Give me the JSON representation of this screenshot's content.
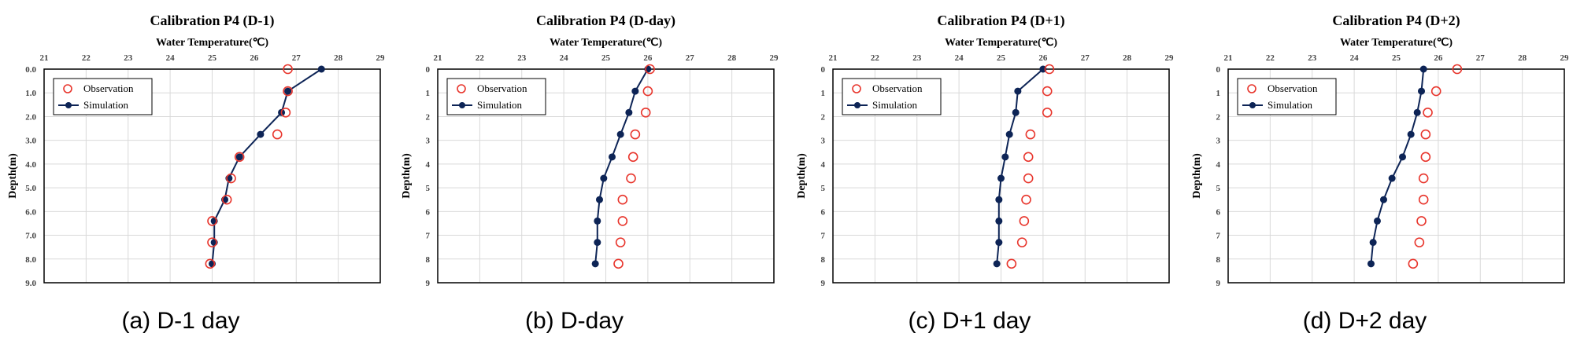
{
  "chart_data": [
    {
      "type": "scatter",
      "title": "Calibration P4 (D-1)",
      "xlabel": "Water Temperature(℃)",
      "ylabel": "Depth(m)",
      "caption": "(a) D-1 day",
      "xlim": [
        21,
        29
      ],
      "ylim": [
        0,
        9
      ],
      "x_ticks": [
        "21",
        "22",
        "23",
        "24",
        "25",
        "26",
        "27",
        "28",
        "29"
      ],
      "y_ticks": [
        "0.0",
        "1.0",
        "2.0",
        "3.0",
        "4.0",
        "5.0",
        "6.0",
        "7.0",
        "8.0",
        "9.0"
      ],
      "y_inverted": true,
      "grid": true,
      "legend_position": "top-left",
      "series": [
        {
          "name": "Observation",
          "marker": "open-circle",
          "color": "#e8352c",
          "points": [
            [
              26.8,
              0.0
            ],
            [
              26.8,
              0.93
            ],
            [
              26.75,
              1.83
            ],
            [
              26.55,
              2.75
            ],
            [
              25.65,
              3.7
            ],
            [
              25.45,
              4.6
            ],
            [
              25.35,
              5.5
            ],
            [
              25.0,
              6.4
            ],
            [
              25.0,
              7.3
            ],
            [
              24.95,
              8.2
            ]
          ]
        },
        {
          "name": "Simulation",
          "marker": "line-dot",
          "color": "#0d2456",
          "points": [
            [
              27.6,
              0.0
            ],
            [
              26.8,
              0.93
            ],
            [
              26.65,
              1.83
            ],
            [
              26.15,
              2.75
            ],
            [
              25.65,
              3.7
            ],
            [
              25.4,
              4.6
            ],
            [
              25.3,
              5.5
            ],
            [
              25.05,
              6.4
            ],
            [
              25.05,
              7.3
            ],
            [
              25.0,
              8.2
            ]
          ]
        }
      ]
    },
    {
      "type": "scatter",
      "title": "Calibration P4 (D-day)",
      "xlabel": "Water Temperature(℃)",
      "ylabel": "Depth(m)",
      "caption": "(b) D-day",
      "xlim": [
        21,
        29
      ],
      "ylim": [
        0,
        9
      ],
      "x_ticks": [
        "21",
        "22",
        "23",
        "24",
        "25",
        "26",
        "27",
        "28",
        "29"
      ],
      "y_ticks": [
        "0",
        "1",
        "2",
        "3",
        "4",
        "5",
        "6",
        "7",
        "8",
        "9"
      ],
      "y_inverted": true,
      "grid": true,
      "legend_position": "top-left",
      "series": [
        {
          "name": "Observation",
          "marker": "open-circle",
          "color": "#e8352c",
          "points": [
            [
              26.05,
              0.0
            ],
            [
              26.0,
              0.93
            ],
            [
              25.95,
              1.83
            ],
            [
              25.7,
              2.75
            ],
            [
              25.65,
              3.7
            ],
            [
              25.6,
              4.6
            ],
            [
              25.4,
              5.5
            ],
            [
              25.4,
              6.4
            ],
            [
              25.35,
              7.3
            ],
            [
              25.3,
              8.2
            ]
          ]
        },
        {
          "name": "Simulation",
          "marker": "line-dot",
          "color": "#0d2456",
          "points": [
            [
              26.0,
              0.0
            ],
            [
              25.7,
              0.93
            ],
            [
              25.55,
              1.83
            ],
            [
              25.35,
              2.75
            ],
            [
              25.15,
              3.7
            ],
            [
              24.95,
              4.6
            ],
            [
              24.85,
              5.5
            ],
            [
              24.8,
              6.4
            ],
            [
              24.8,
              7.3
            ],
            [
              24.75,
              8.2
            ]
          ]
        }
      ]
    },
    {
      "type": "scatter",
      "title": "Calibration P4 (D+1)",
      "xlabel": "Water Temperature(℃)",
      "ylabel": "Depth(m)",
      "caption": "(c) D+1 day",
      "xlim": [
        21,
        29
      ],
      "ylim": [
        0,
        9
      ],
      "x_ticks": [
        "21",
        "22",
        "23",
        "24",
        "25",
        "26",
        "27",
        "28",
        "29"
      ],
      "y_ticks": [
        "0",
        "1",
        "2",
        "3",
        "4",
        "5",
        "6",
        "7",
        "8",
        "9"
      ],
      "y_inverted": true,
      "grid": true,
      "legend_position": "top-left",
      "series": [
        {
          "name": "Observation",
          "marker": "open-circle",
          "color": "#e8352c",
          "points": [
            [
              26.15,
              0.0
            ],
            [
              26.1,
              0.93
            ],
            [
              26.1,
              1.83
            ],
            [
              25.7,
              2.75
            ],
            [
              25.65,
              3.7
            ],
            [
              25.65,
              4.6
            ],
            [
              25.6,
              5.5
            ],
            [
              25.55,
              6.4
            ],
            [
              25.5,
              7.3
            ],
            [
              25.25,
              8.2
            ]
          ]
        },
        {
          "name": "Simulation",
          "marker": "line-dot",
          "color": "#0d2456",
          "points": [
            [
              26.0,
              0.0
            ],
            [
              25.4,
              0.93
            ],
            [
              25.35,
              1.83
            ],
            [
              25.2,
              2.75
            ],
            [
              25.1,
              3.7
            ],
            [
              25.0,
              4.6
            ],
            [
              24.95,
              5.5
            ],
            [
              24.95,
              6.4
            ],
            [
              24.95,
              7.3
            ],
            [
              24.9,
              8.2
            ]
          ]
        }
      ]
    },
    {
      "type": "scatter",
      "title": "Calibration P4 (D+2)",
      "xlabel": "Water Temperature(℃)",
      "ylabel": "Depth(m)",
      "caption": "(d) D+2 day",
      "xlim": [
        21,
        29
      ],
      "ylim": [
        0,
        9
      ],
      "x_ticks": [
        "21",
        "22",
        "23",
        "24",
        "25",
        "26",
        "27",
        "28",
        "29"
      ],
      "y_ticks": [
        "0",
        "1",
        "2",
        "3",
        "4",
        "5",
        "6",
        "7",
        "8",
        "9"
      ],
      "y_inverted": true,
      "grid": true,
      "legend_position": "top-left",
      "series": [
        {
          "name": "Observation",
          "marker": "open-circle",
          "color": "#e8352c",
          "points": [
            [
              26.45,
              0.0
            ],
            [
              25.95,
              0.93
            ],
            [
              25.75,
              1.83
            ],
            [
              25.7,
              2.75
            ],
            [
              25.7,
              3.7
            ],
            [
              25.65,
              4.6
            ],
            [
              25.65,
              5.5
            ],
            [
              25.6,
              6.4
            ],
            [
              25.55,
              7.3
            ],
            [
              25.4,
              8.2
            ]
          ]
        },
        {
          "name": "Simulation",
          "marker": "line-dot",
          "color": "#0d2456",
          "points": [
            [
              25.65,
              0.0
            ],
            [
              25.6,
              0.93
            ],
            [
              25.5,
              1.83
            ],
            [
              25.35,
              2.75
            ],
            [
              25.15,
              3.7
            ],
            [
              24.9,
              4.6
            ],
            [
              24.7,
              5.5
            ],
            [
              24.55,
              6.4
            ],
            [
              24.45,
              7.3
            ],
            [
              24.4,
              8.2
            ]
          ]
        }
      ]
    }
  ]
}
